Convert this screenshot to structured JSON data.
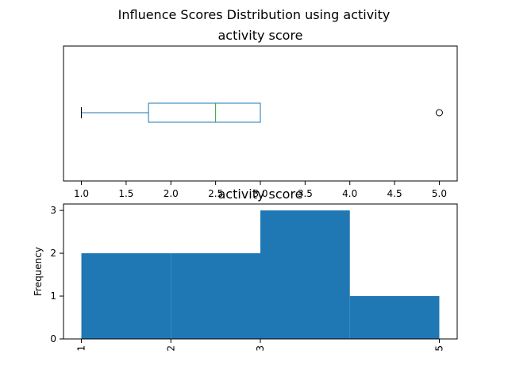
{
  "figure_title": "Influence Scores Distribution using activity",
  "colors": {
    "box": "#1f77b4",
    "median": "#2ca02c",
    "hist_fill": "#1f77b4",
    "axis": "#000000"
  },
  "chart_data": [
    {
      "type": "box",
      "title": "activity score",
      "orientation": "horizontal",
      "xlabel": "",
      "ylabel": "",
      "xlim": [
        0.8,
        5.2
      ],
      "xticks": [
        1.0,
        1.5,
        2.0,
        2.5,
        3.0,
        3.5,
        4.0,
        4.5,
        5.0
      ],
      "xtick_labels": [
        "1.0",
        "1.5",
        "2.0",
        "2.5",
        "3.0",
        "3.5",
        "4.0",
        "4.5",
        "5.0"
      ],
      "whisker_low": 1.0,
      "q1": 1.75,
      "median": 2.5,
      "q3": 3.0,
      "whisker_high": 3.0,
      "outliers": [
        5.0
      ]
    },
    {
      "type": "bar",
      "title": "activity score",
      "xlabel": "",
      "ylabel": "Frequency",
      "xlim": [
        0.8,
        5.2
      ],
      "ylim": [
        0,
        3.15
      ],
      "xticks": [
        1,
        2,
        3,
        5
      ],
      "xtick_labels": [
        "1",
        "2",
        "3",
        "5"
      ],
      "yticks": [
        0,
        1,
        2,
        3
      ],
      "ytick_labels": [
        "0",
        "1",
        "2",
        "3"
      ],
      "bins": [
        {
          "start": 1,
          "end": 2,
          "count": 2
        },
        {
          "start": 2,
          "end": 3,
          "count": 2
        },
        {
          "start": 3,
          "end": 4,
          "count": 3
        },
        {
          "start": 4,
          "end": 5,
          "count": 1
        }
      ]
    }
  ]
}
